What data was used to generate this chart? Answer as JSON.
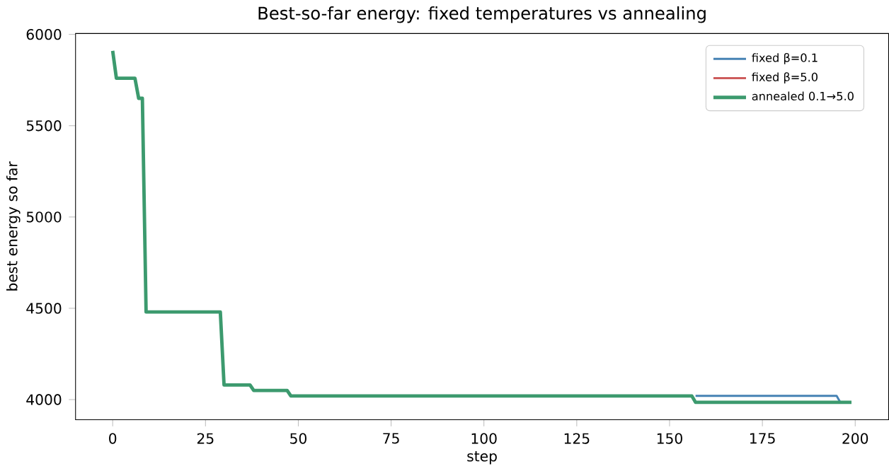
{
  "chart_data": {
    "type": "line",
    "title": "Best-so-far energy: fixed temperatures vs annealing",
    "xlabel": "step",
    "ylabel": "best energy so far",
    "series": [
      {
        "name": "fixed β=0.1",
        "color": "#4682b4",
        "x": [
          157,
          195,
          196
        ],
        "values": [
          4020,
          4020,
          3985
        ]
      },
      {
        "name": "fixed β=5.0",
        "color": "#cd5c5c",
        "values": [
          null
        ]
      },
      {
        "name": "annealed 0.1→5.0",
        "color": "#3c9a6e",
        "x": [
          0,
          1,
          6,
          7,
          8,
          9,
          29,
          30,
          37,
          38,
          47,
          48,
          156,
          157,
          199
        ],
        "values": [
          5910,
          5760,
          5760,
          5650,
          5650,
          4480,
          4480,
          4080,
          4080,
          4050,
          4050,
          4020,
          4020,
          3985,
          3985
        ]
      }
    ],
    "xlim": [
      -10,
      209
    ],
    "ylim": [
      3890,
      6005
    ],
    "xticks": [
      0,
      25,
      50,
      75,
      100,
      125,
      150,
      175,
      200
    ],
    "yticks": [
      4000,
      4500,
      5000,
      5500,
      6000
    ],
    "legend": "top right",
    "grid": false,
    "marker": "none",
    "line_style": "solid"
  }
}
